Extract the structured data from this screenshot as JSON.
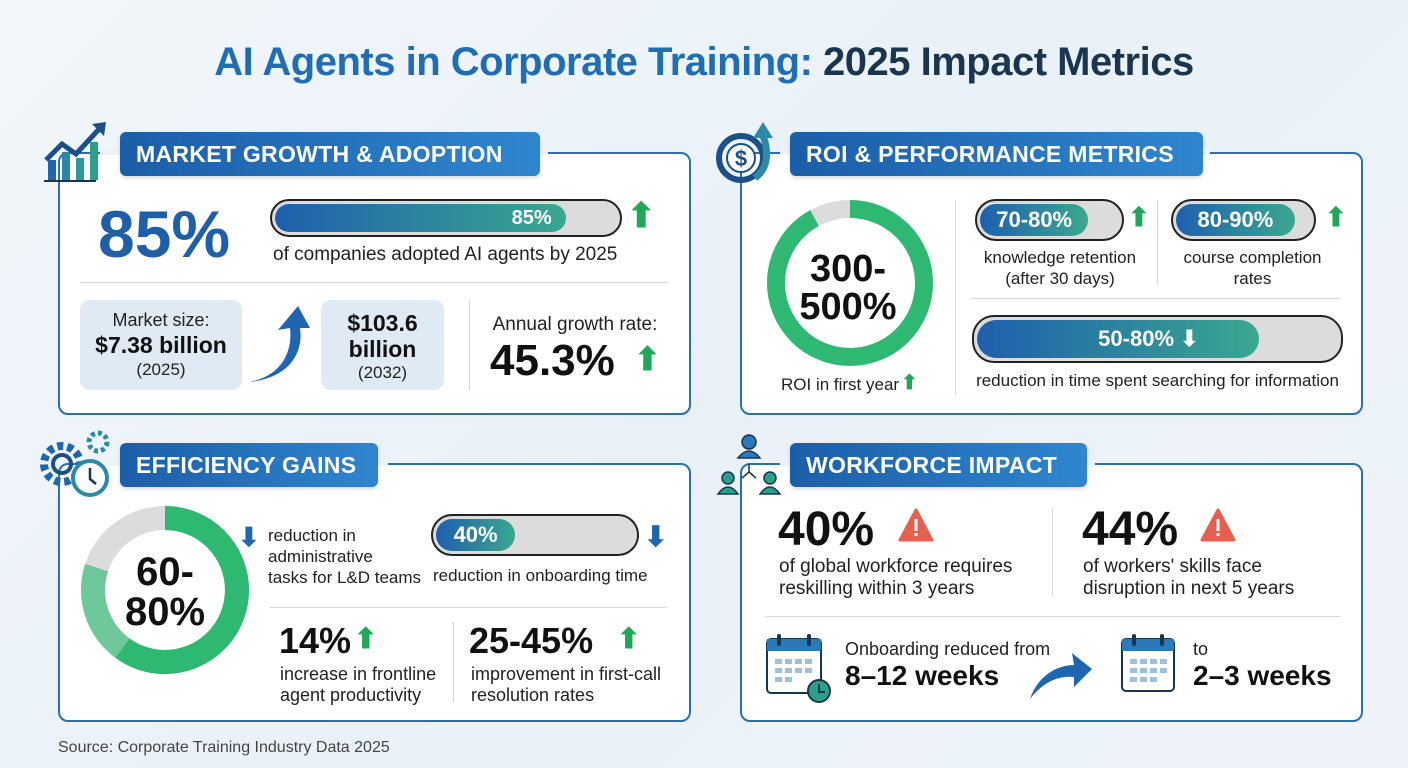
{
  "title": {
    "part1": "AI Agents in Corporate Training:",
    "part2": "2025 Impact Metrics"
  },
  "colors": {
    "primary_blue": "#1f6db3",
    "navy": "#1a3550",
    "up_green": "#1fa85a",
    "donut_green": "#2eb872",
    "warning_red": "#e5604f"
  },
  "market": {
    "header": "MARKET GROWTH & ADOPTION",
    "icon": "growth-chart-icon",
    "adoption_value": "85%",
    "adoption_bar_label": "85%",
    "adoption_bar_fraction": 0.85,
    "adoption_caption": "of companies adopted AI agents by 2025",
    "size_label": "Market size:",
    "size_2025": "$7.38 billion",
    "size_2025_year": "(2025)",
    "size_2032": "$103.6 billion",
    "size_2032_year": "(2032)",
    "growth_label": "Annual growth rate:",
    "growth_value": "45.3%"
  },
  "roi": {
    "header": "ROI & PERFORMANCE METRICS",
    "icon": "dollar-growth-icon",
    "roi_value_line1": "300-",
    "roi_value_line2": "500%",
    "roi_fraction": 0.92,
    "roi_caption": "ROI in first year",
    "retention_value": "70-80%",
    "retention_fraction": 0.78,
    "retention_caption_1": "knowledge retention",
    "retention_caption_2": "(after 30 days)",
    "completion_value": "80-90%",
    "completion_fraction": 0.88,
    "completion_caption_1": "course completion",
    "completion_caption_2": "rates",
    "search_value": "50-80%",
    "search_fraction": 0.78,
    "search_caption": "reduction in time spent searching for information"
  },
  "efficiency": {
    "header": "EFFICIENCY GAINS",
    "icon": "gears-clock-icon",
    "admin_value_line1": "60-",
    "admin_value_line2": "80%",
    "admin_fraction_low": 0.6,
    "admin_fraction_high": 0.8,
    "admin_caption_1": "reduction in",
    "admin_caption_2": "administrative",
    "admin_caption_3": "tasks for L&D teams",
    "onboarding_value": "40%",
    "onboarding_fraction": 0.4,
    "onboarding_caption": "reduction in onboarding time",
    "productivity_value": "14%",
    "productivity_caption_1": "increase in frontline",
    "productivity_caption_2": "agent productivity",
    "resolution_value": "25-45%",
    "resolution_caption_1": "improvement in first-call",
    "resolution_caption_2": "resolution rates"
  },
  "workforce": {
    "header": "WORKFORCE IMPACT",
    "icon": "team-network-icon",
    "reskill_value": "40%",
    "reskill_caption_1": "of global workforce requires",
    "reskill_caption_2": "reskilling within 3 years",
    "disruption_value": "44%",
    "disruption_caption_1": "of workers' skills face",
    "disruption_caption_2": "disruption in next 5 years",
    "onboard_from_label": "Onboarding reduced from",
    "onboard_from_value": "8–12 weeks",
    "onboard_to_label": "to",
    "onboard_to_value": "2–3 weeks"
  },
  "source": "Source: Corporate Training Industry Data 2025"
}
